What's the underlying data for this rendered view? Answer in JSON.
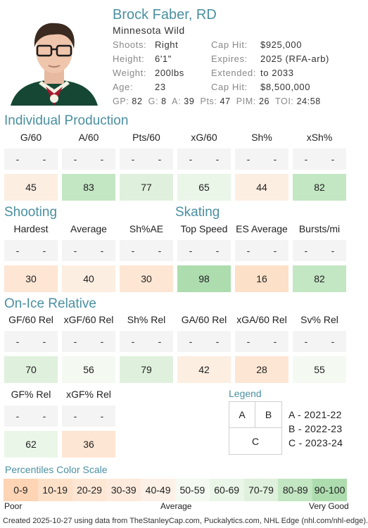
{
  "player": {
    "name": "Brock Faber, RD",
    "team": "Minnesota Wild",
    "info_left": [
      {
        "label": "Shoots:",
        "value": "Right"
      },
      {
        "label": "Height:",
        "value": "6'1\""
      },
      {
        "label": "Weight:",
        "value": "200lbs"
      },
      {
        "label": "Age:",
        "value": "23"
      }
    ],
    "info_right": [
      {
        "label": "Cap Hit:",
        "value": "$925,000"
      },
      {
        "label": "Expires:",
        "value": "2025 (RFA-arb)"
      },
      {
        "label": "Extended:",
        "value": "to 2033"
      },
      {
        "label": "Cap Hit:",
        "value": "$8,500,000"
      }
    ],
    "statline": [
      {
        "k": "GP:",
        "v": "82"
      },
      {
        "k": "G:",
        "v": "8"
      },
      {
        "k": "A:",
        "v": "39"
      },
      {
        "k": "Pts:",
        "v": "47"
      },
      {
        "k": "PIM:",
        "v": "26"
      },
      {
        "k": "TOI:",
        "v": "24:58"
      }
    ]
  },
  "sections": {
    "individual": {
      "title": "Individual Production",
      "metrics": [
        {
          "label": "G/60",
          "seasons": [
            "-",
            "-"
          ],
          "pct": "45",
          "color": "#fdeee2"
        },
        {
          "label": "A/60",
          "seasons": [
            "-",
            "-"
          ],
          "pct": "83",
          "color": "#c3e6c3"
        },
        {
          "label": "Pts/60",
          "seasons": [
            "-",
            "-"
          ],
          "pct": "77",
          "color": "#dff1dc"
        },
        {
          "label": "xG/60",
          "seasons": [
            "-",
            "-"
          ],
          "pct": "65",
          "color": "#eaf6e8"
        },
        {
          "label": "Sh%",
          "seasons": [
            "-",
            "-"
          ],
          "pct": "44",
          "color": "#fdeee2"
        },
        {
          "label": "xSh%",
          "seasons": [
            "-",
            "-"
          ],
          "pct": "82",
          "color": "#c3e6c3"
        }
      ]
    },
    "shooting": {
      "title": "Shooting",
      "metrics": [
        {
          "label": "Hardest",
          "seasons": [
            "-",
            "-"
          ],
          "pct": "30",
          "color": "#fde6d4"
        },
        {
          "label": "Average",
          "seasons": [
            "-",
            "-"
          ],
          "pct": "40",
          "color": "#fdeee2"
        },
        {
          "label": "Sh%AE",
          "seasons": [
            "-",
            "-"
          ],
          "pct": "30",
          "color": "#fde6d4"
        }
      ]
    },
    "skating": {
      "title": "Skating",
      "metrics": [
        {
          "label": "Top Speed",
          "seasons": [
            "-",
            "-"
          ],
          "pct": "98",
          "color": "#addcae"
        },
        {
          "label": "ES Average",
          "seasons": [
            "-",
            "-"
          ],
          "pct": "16",
          "color": "#fde0c8"
        },
        {
          "label": "Bursts/mi",
          "seasons": [
            "-",
            "-"
          ],
          "pct": "82",
          "color": "#c3e6c3"
        }
      ]
    },
    "onice": {
      "title": "On-Ice Relative",
      "metrics": [
        {
          "label": "GF/60 Rel",
          "seasons": [
            "-",
            "-"
          ],
          "pct": "70",
          "color": "#dff1dc"
        },
        {
          "label": "xGF/60 Rel",
          "seasons": [
            "-",
            "-"
          ],
          "pct": "56",
          "color": "#f4faf2"
        },
        {
          "label": "Sh% Rel",
          "seasons": [
            "-",
            "-"
          ],
          "pct": "79",
          "color": "#dff1dc"
        },
        {
          "label": "GA/60 Rel",
          "seasons": [
            "-",
            "-"
          ],
          "pct": "42",
          "color": "#fdeee2"
        },
        {
          "label": "xGA/60 Rel",
          "seasons": [
            "-",
            "-"
          ],
          "pct": "28",
          "color": "#fde6d4"
        },
        {
          "label": "Sv% Rel",
          "seasons": [
            "-",
            "-"
          ],
          "pct": "55",
          "color": "#f4faf2"
        },
        {
          "label": "GF% Rel",
          "seasons": [
            "-",
            "-"
          ],
          "pct": "62",
          "color": "#eaf6e8"
        },
        {
          "label": "xGF% Rel",
          "seasons": [
            "-",
            "-"
          ],
          "pct": "36",
          "color": "#fde6d4"
        }
      ]
    }
  },
  "legend": {
    "title": "Legend",
    "cells": {
      "a": "A",
      "b": "B",
      "c": "C"
    },
    "items": [
      "A - 2021-22",
      "B - 2022-23",
      "C - 2023-24"
    ]
  },
  "scale": {
    "title": "Percentiles Color Scale",
    "bins": [
      {
        "label": "0-9",
        "color": "#fdd4b4"
      },
      {
        "label": "10-19",
        "color": "#fde0c8"
      },
      {
        "label": "20-29",
        "color": "#fde6d4"
      },
      {
        "label": "30-39",
        "color": "#fdeadc"
      },
      {
        "label": "40-49",
        "color": "#fdf0e6"
      },
      {
        "label": "50-59",
        "color": "#f4faf2"
      },
      {
        "label": "60-69",
        "color": "#eaf6e8"
      },
      {
        "label": "70-79",
        "color": "#dff1dc"
      },
      {
        "label": "80-89",
        "color": "#c3e6c3"
      },
      {
        "label": "90-100",
        "color": "#addcae"
      }
    ],
    "poor": "Poor",
    "average": "Average",
    "very_good": "Very Good"
  },
  "footer": "Created 2025-10-27 using data from TheStanleyCap.com, Puckalytics.com, NHL Edge (nhl.com/nhl-edge).",
  "colors": {
    "accent": "#4a8fa0",
    "jersey": "#154734"
  }
}
